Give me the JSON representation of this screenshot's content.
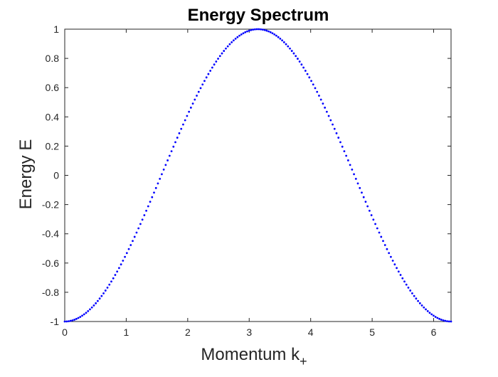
{
  "chart_data": {
    "type": "scatter",
    "title": "Energy Spectrum",
    "xlabel": "Momentum k",
    "xlabel_subscript": "+",
    "ylabel": "Energy E",
    "xlim": [
      0,
      6.2832
    ],
    "ylim": [
      -1,
      1
    ],
    "xticks": [
      0,
      1,
      2,
      3,
      4,
      5,
      6
    ],
    "xtick_labels": [
      "0",
      "1",
      "2",
      "3",
      "4",
      "5",
      "6"
    ],
    "yticks": [
      -1,
      -0.8,
      -0.6,
      -0.4,
      -0.2,
      0,
      0.2,
      0.4,
      0.6,
      0.8,
      1
    ],
    "ytick_labels": [
      "-1",
      "-0.8",
      "-0.6",
      "-0.4",
      "-0.2",
      "0",
      "0.2",
      "0.4",
      "0.6",
      "0.8",
      "1"
    ],
    "grid": false,
    "series": [
      {
        "function": "E = -cos(k)",
        "x_start": 0,
        "x_end": 6.2832,
        "num_points": 200,
        "color": "#0000ff",
        "marker": "dot"
      }
    ]
  },
  "colors": {
    "axis": "#262626",
    "series": "#0000ff"
  }
}
